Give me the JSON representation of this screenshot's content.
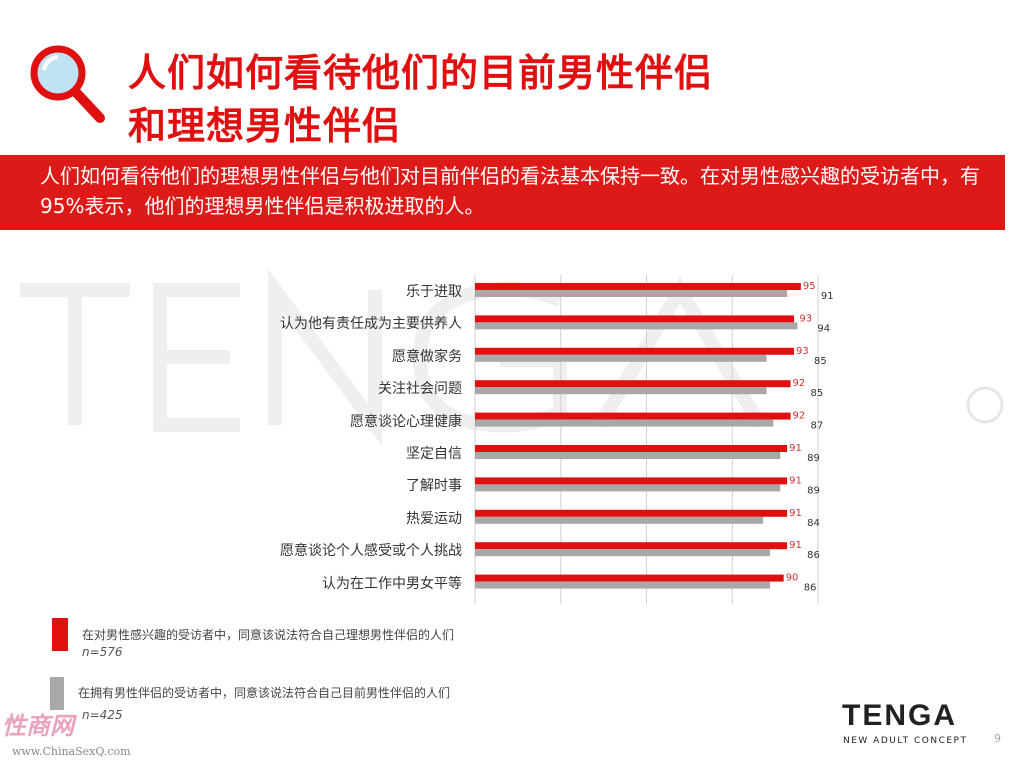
{
  "header": {
    "title_line1": "人们如何看待他们的目前男性伴侣",
    "title_line2": "和理想男性伴侣",
    "icon": "magnifier-icon"
  },
  "banner": {
    "text": "人们如何看待他们的理想男性伴侣与他们对目前伴侣的看法基本保持一致。在对男性感兴趣的受访者中，有95%表示，他们的理想男性伴侣是积极进取的人。"
  },
  "watermark": {
    "brand": "TENGA",
    "tagline": "NEW ADULT CONCEPT",
    "registered": "®",
    "site_logo": "性商网",
    "site_url": "www.ChinaSexQ.com"
  },
  "chart_data": {
    "type": "bar",
    "orientation": "horizontal",
    "categories": [
      "乐于进取",
      "认为他有责任成为主要供养人",
      "愿意做家务",
      "关注社会问题",
      "愿意谈论心理健康",
      "坚定自信",
      "了解时事",
      "热爱运动",
      "愿意谈论个人感受或个人挑战",
      "认为在工作中男女平等"
    ],
    "series": [
      {
        "name": "在对男性感兴趣的受访者中，同意该说法符合自己理想男性伴侣的人们",
        "n": "n=576",
        "color": "#e01010",
        "values": [
          95,
          93,
          93,
          92,
          92,
          91,
          91,
          91,
          91,
          90
        ]
      },
      {
        "name": "在拥有男性伴侣的受访者中，同意该说法符合自己目前男性伴侣的人们",
        "n": "n=425",
        "color": "#a8a8a8",
        "values": [
          91,
          94,
          85,
          85,
          87,
          89,
          89,
          84,
          86,
          86
        ]
      }
    ],
    "xlim": [
      0,
      100
    ],
    "grid": true,
    "legend": "bottom-left"
  },
  "footer": {
    "logo": "TENGA",
    "tagline": "NEW ADULT CONCEPT",
    "page": "9"
  }
}
